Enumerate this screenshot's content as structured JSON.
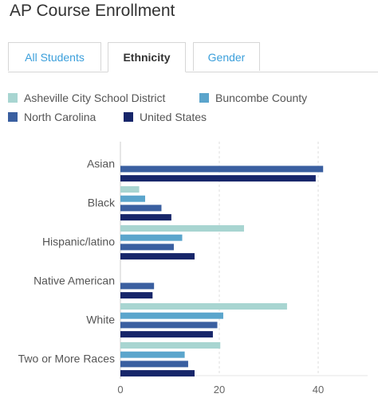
{
  "title": "AP Course Enrollment",
  "tabs": [
    {
      "label": "All Students",
      "active": false
    },
    {
      "label": "Ethnicity",
      "active": true
    },
    {
      "label": "Gender",
      "active": false
    }
  ],
  "chart_data": {
    "type": "bar",
    "orientation": "horizontal",
    "categories": [
      "Asian",
      "Black",
      "Hispanic/latino",
      "Native American",
      "White",
      "Two or More Races"
    ],
    "series": [
      {
        "name": "Asheville City School District",
        "color": "#a8d5d1",
        "values": [
          null,
          3.8,
          25.0,
          null,
          33.7,
          20.2
        ]
      },
      {
        "name": "Buncombe County",
        "color": "#5ba5cc",
        "values": [
          null,
          5.0,
          12.5,
          null,
          20.8,
          13.0
        ]
      },
      {
        "name": "North Carolina",
        "color": "#3a5fa0",
        "values": [
          41.0,
          8.3,
          10.8,
          6.8,
          19.6,
          13.7
        ]
      },
      {
        "name": "United States",
        "color": "#17266a",
        "values": [
          39.5,
          10.3,
          15.0,
          6.5,
          18.7,
          15.0
        ]
      }
    ],
    "xlim": [
      0,
      50
    ],
    "xticks": [
      "0",
      "20",
      "40"
    ],
    "xtick_values": [
      0,
      20,
      40
    ],
    "grid": true,
    "legend_position": "top"
  }
}
